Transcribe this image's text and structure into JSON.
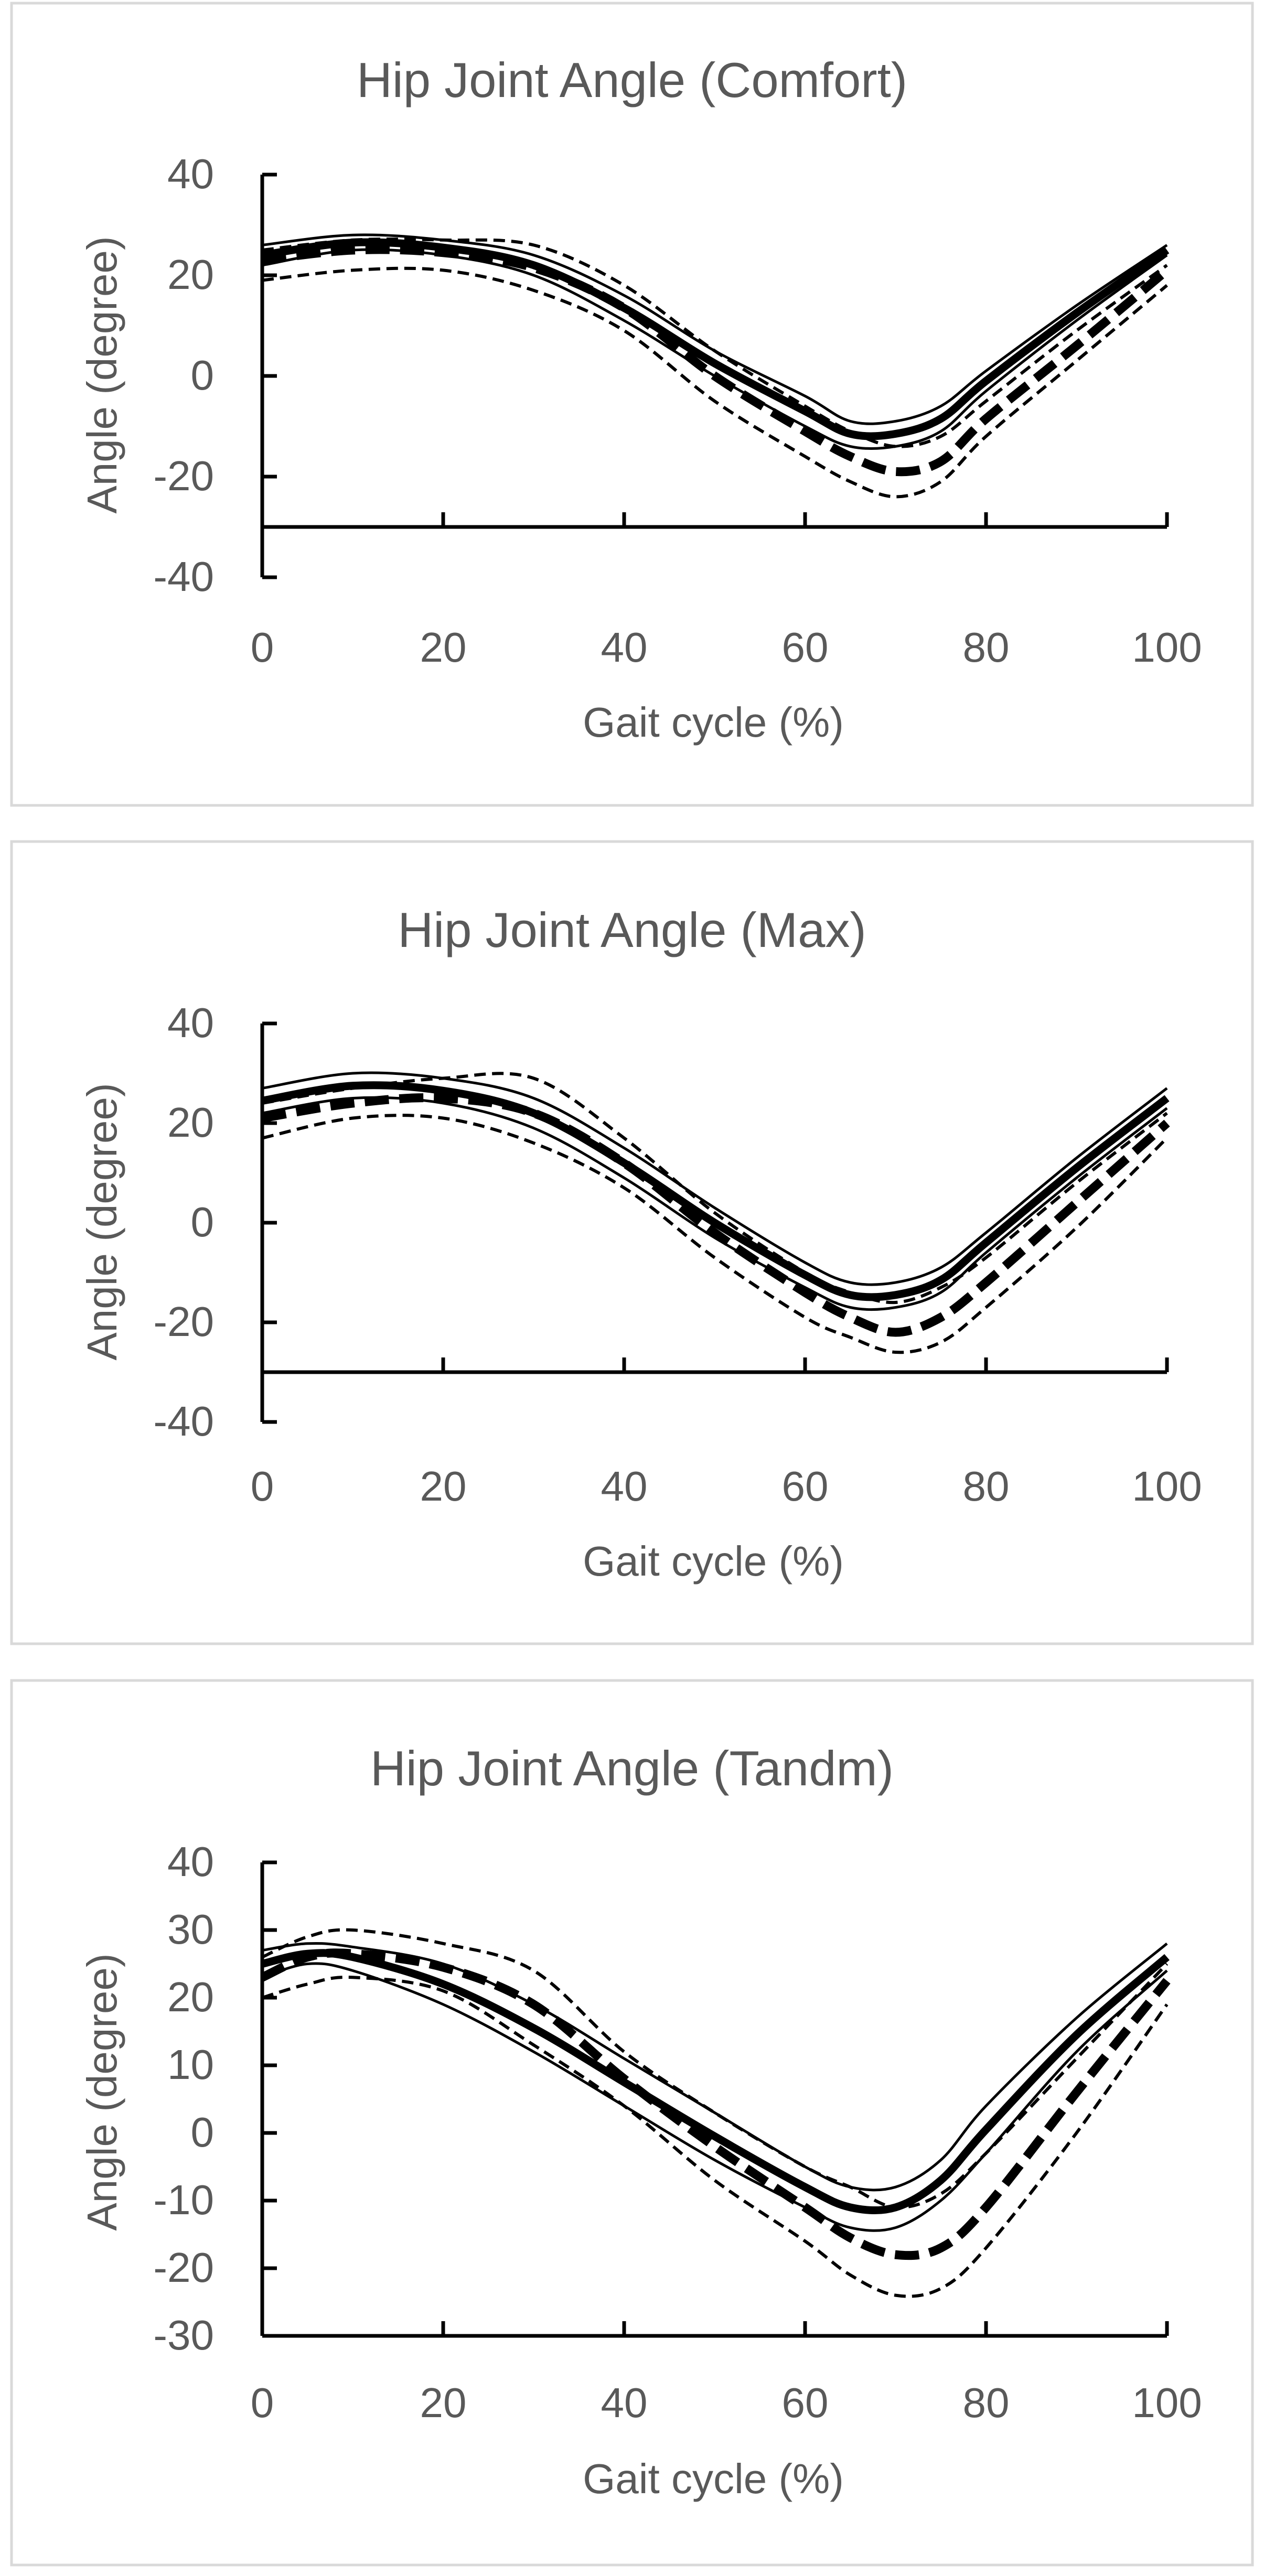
{
  "colors": {
    "line": "#000000",
    "text": "#595959",
    "border": "#d9d9d9",
    "background": "#ffffff"
  },
  "chart_data": [
    {
      "type": "line",
      "title": "Hip Joint Angle (Comfort)",
      "xlabel": "Gait cycle (%)",
      "ylabel": "Angle (degree)",
      "xlim": [
        0,
        100
      ],
      "ylim": [
        -40,
        40
      ],
      "x_axis_crosses_at": -30,
      "xticks": [
        "0",
        "20",
        "40",
        "60",
        "80",
        "100"
      ],
      "yticks": [
        "-40",
        "-20",
        "0",
        "20",
        "40"
      ],
      "x": [
        0,
        10,
        20,
        30,
        40,
        50,
        60,
        65,
        70,
        75,
        80,
        90,
        100
      ],
      "series": [
        {
          "name": "solid-upper",
          "style": "thin",
          "values": [
            26,
            28,
            27,
            24,
            16,
            5,
            -4,
            -9,
            -9,
            -6,
            1,
            14,
            26
          ]
        },
        {
          "name": "solid-lower",
          "style": "thin",
          "values": [
            22,
            25,
            24,
            20,
            11,
            0,
            -10,
            -14,
            -14,
            -11,
            -3,
            11,
            24
          ]
        },
        {
          "name": "solid-mean",
          "style": "thick",
          "values": [
            24,
            26.5,
            25.5,
            22,
            13.5,
            2.5,
            -7,
            -11.5,
            -11.5,
            -8.5,
            -1,
            12.5,
            25
          ]
        },
        {
          "name": "dashed-upper",
          "style": "thin-dash",
          "values": [
            25,
            27,
            27,
            26,
            18,
            5,
            -6,
            -11,
            -14,
            -12,
            -5,
            9,
            22
          ]
        },
        {
          "name": "dashed-lower",
          "style": "thin-dash",
          "values": [
            19,
            21,
            21,
            17,
            9,
            -5,
            -16,
            -21,
            -24,
            -21,
            -12,
            3,
            18
          ]
        },
        {
          "name": "dashed-mean",
          "style": "thick-dash",
          "values": [
            23,
            25,
            24.5,
            21.5,
            13.5,
            0,
            -11,
            -16,
            -19,
            -17,
            -8.5,
            6,
            21
          ]
        }
      ]
    },
    {
      "type": "line",
      "title": "Hip Joint Angle (Max)",
      "xlabel": "Gait cycle (%)",
      "ylabel": "Angle (degree)",
      "xlim": [
        0,
        100
      ],
      "ylim": [
        -40,
        40
      ],
      "x_axis_crosses_at": -30,
      "xticks": [
        "0",
        "20",
        "40",
        "60",
        "80",
        "100"
      ],
      "yticks": [
        "-40",
        "-20",
        "0",
        "20",
        "40"
      ],
      "x": [
        0,
        10,
        20,
        30,
        40,
        50,
        60,
        65,
        70,
        75,
        80,
        90,
        100
      ],
      "series": [
        {
          "name": "solid-upper",
          "style": "thin",
          "values": [
            27,
            30,
            29,
            25,
            15,
            3,
            -8,
            -12,
            -12,
            -9,
            -2,
            13,
            27
          ]
        },
        {
          "name": "solid-lower",
          "style": "thin",
          "values": [
            22,
            25,
            24,
            19,
            9,
            -3,
            -13,
            -17,
            -17,
            -14,
            -6,
            9,
            23
          ]
        },
        {
          "name": "solid-mean",
          "style": "thick",
          "values": [
            24.5,
            27.5,
            26.5,
            22,
            12,
            0,
            -10.5,
            -14.5,
            -14.5,
            -11.5,
            -4,
            11,
            25
          ]
        },
        {
          "name": "dashed-upper",
          "style": "thin-dash",
          "values": [
            24,
            27,
            29,
            29,
            17,
            2,
            -10,
            -14,
            -16,
            -13,
            -7,
            8,
            22
          ]
        },
        {
          "name": "dashed-lower",
          "style": "thin-dash",
          "values": [
            17,
            21,
            21,
            16,
            7,
            -7,
            -19,
            -23,
            -26,
            -24,
            -17,
            -1,
            17
          ]
        },
        {
          "name": "dashed-mean",
          "style": "thick-dash",
          "values": [
            21,
            24,
            25,
            22,
            12,
            -2,
            -14,
            -19,
            -22,
            -19,
            -12,
            4,
            20
          ]
        }
      ]
    },
    {
      "type": "line",
      "title": "Hip Joint Angle (Tandm)",
      "xlabel": "Gait cycle (%)",
      "ylabel": "Angle (degree)",
      "xlim": [
        0,
        100
      ],
      "ylim": [
        -30,
        40
      ],
      "x_axis_crosses_at": -30,
      "xticks": [
        "0",
        "20",
        "40",
        "60",
        "80",
        "100"
      ],
      "yticks": [
        "-30",
        "-20",
        "-10",
        "0",
        "10",
        "20",
        "30",
        "40"
      ],
      "x": [
        0,
        5,
        10,
        20,
        30,
        40,
        50,
        60,
        65,
        70,
        75,
        80,
        90,
        100
      ],
      "series": [
        {
          "name": "solid-upper",
          "style": "thin",
          "values": [
            27,
            28,
            27.5,
            25,
            19,
            11,
            3,
            -5,
            -8,
            -8,
            -4,
            4,
            17,
            28
          ]
        },
        {
          "name": "solid-lower",
          "style": "thin",
          "values": [
            23,
            25,
            24,
            19,
            12,
            4,
            -4,
            -11,
            -14,
            -14,
            -10,
            -3,
            12,
            24
          ]
        },
        {
          "name": "solid-mean",
          "style": "thick",
          "values": [
            25,
            26.5,
            26,
            22,
            15.5,
            7.5,
            -0.5,
            -8,
            -11,
            -11,
            -7,
            0.5,
            14.5,
            26
          ]
        },
        {
          "name": "dashed-upper",
          "style": "thin-dash",
          "values": [
            26,
            29,
            30,
            28,
            24,
            12,
            3,
            -5,
            -8,
            -11,
            -9,
            -3,
            11,
            25
          ]
        },
        {
          "name": "dashed-lower",
          "style": "thin-dash",
          "values": [
            20,
            22,
            23,
            21,
            13,
            4,
            -7,
            -16,
            -21,
            -24,
            -23,
            -17,
            0,
            19
          ]
        },
        {
          "name": "dashed-mean",
          "style": "thick-dash",
          "values": [
            23,
            26,
            26.5,
            24.5,
            19,
            8,
            -2,
            -11,
            -15.5,
            -18,
            -17,
            -11,
            6,
            22.5
          ]
        }
      ]
    }
  ]
}
